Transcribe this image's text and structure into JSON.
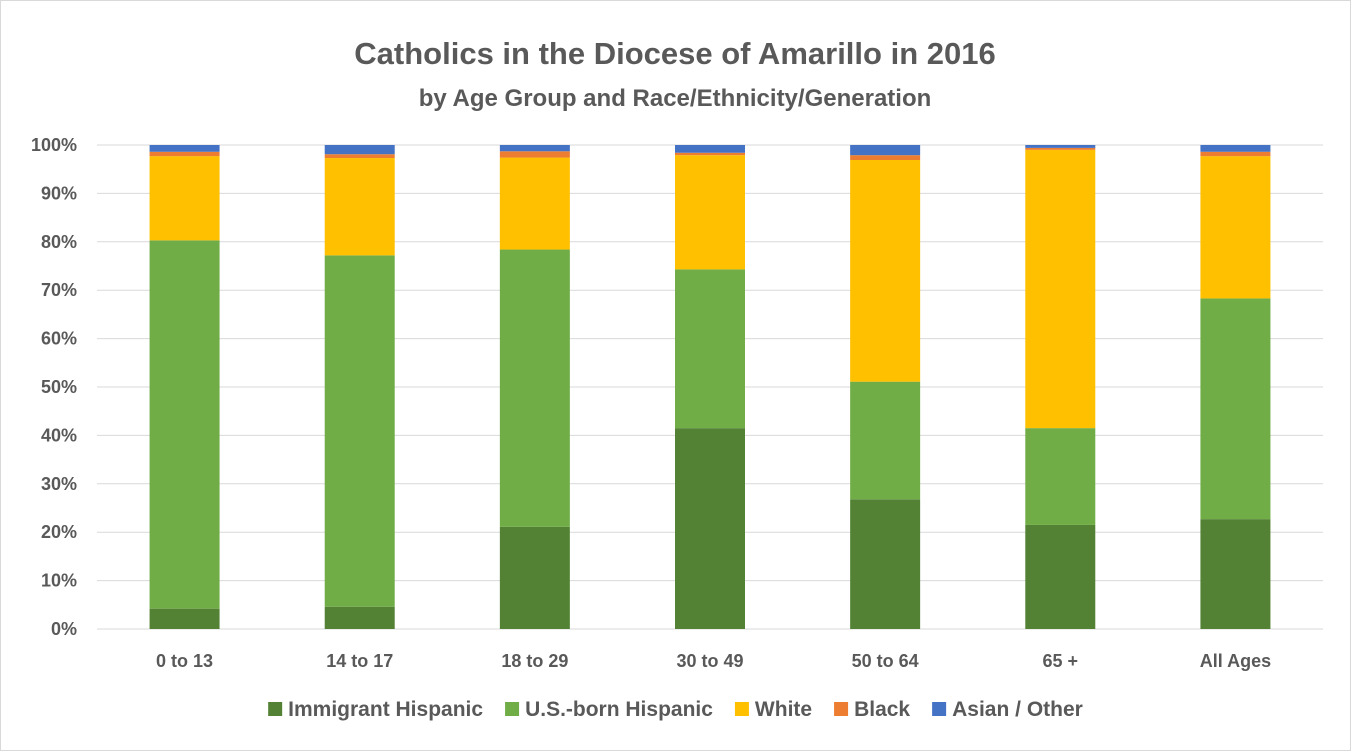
{
  "chart_data": {
    "type": "bar",
    "stacked": true,
    "title": "Catholics in the Diocese of Amarillo in 2016",
    "subtitle": "by Age Group and Race/Ethnicity/Generation",
    "categories": [
      "0 to 13",
      "14 to 17",
      "18 to 29",
      "30 to 49",
      "50 to 64",
      "65 +",
      "All Ages"
    ],
    "y_ticks": [
      "0%",
      "10%",
      "20%",
      "30%",
      "40%",
      "50%",
      "60%",
      "70%",
      "80%",
      "90%",
      "100%"
    ],
    "ylim": [
      0,
      100
    ],
    "grid": true,
    "legend_position": "bottom",
    "series": [
      {
        "name": "Immigrant Hispanic",
        "color": "#548235",
        "values": [
          4.2,
          4.6,
          21.1,
          41.5,
          26.8,
          21.5,
          22.7
        ]
      },
      {
        "name": "U.S.-born Hispanic",
        "color": "#70ad47",
        "values": [
          76.1,
          72.6,
          57.3,
          32.8,
          24.3,
          20.0,
          45.6
        ]
      },
      {
        "name": "White",
        "color": "#ffc000",
        "values": [
          17.4,
          20.1,
          19.0,
          23.6,
          45.8,
          57.5,
          29.4
        ]
      },
      {
        "name": "Black",
        "color": "#ed7d31",
        "values": [
          0.9,
          0.8,
          1.3,
          0.5,
          1.0,
          0.4,
          0.9
        ]
      },
      {
        "name": "Asian / Other",
        "color": "#4472c4",
        "values": [
          1.4,
          1.9,
          1.3,
          1.6,
          2.1,
          0.6,
          1.4
        ]
      }
    ],
    "gridline_color": "#d9d9d9",
    "text_color": "#595959"
  }
}
